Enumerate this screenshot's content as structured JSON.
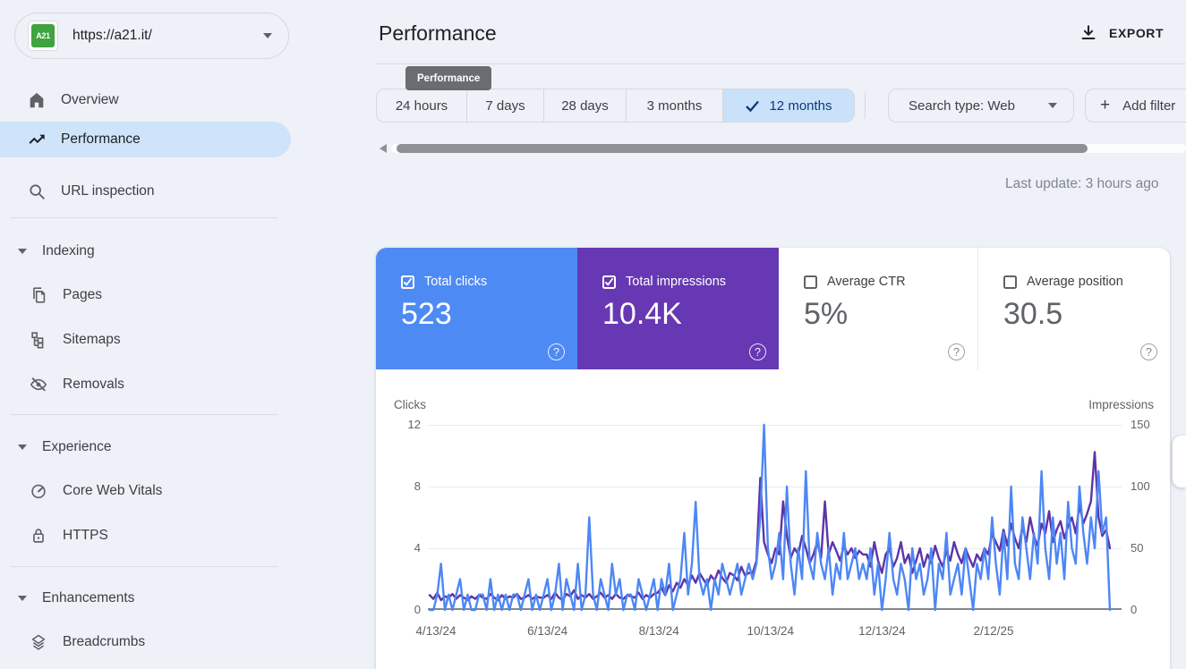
{
  "property": {
    "url": "https://a21.it/",
    "favicon_text": "A21"
  },
  "sidebar": {
    "items": [
      {
        "label": "Overview",
        "icon": "home"
      },
      {
        "label": "Performance",
        "icon": "trending-up",
        "selected": true
      },
      {
        "label": "URL inspection",
        "icon": "search"
      }
    ],
    "sections": [
      {
        "label": "Indexing",
        "items": [
          {
            "label": "Pages",
            "icon": "pages"
          },
          {
            "label": "Sitemaps",
            "icon": "sitemap"
          },
          {
            "label": "Removals",
            "icon": "eye-off"
          }
        ]
      },
      {
        "label": "Experience",
        "items": [
          {
            "label": "Core Web Vitals",
            "icon": "gauge"
          },
          {
            "label": "HTTPS",
            "icon": "lock"
          }
        ]
      },
      {
        "label": "Enhancements",
        "items": [
          {
            "label": "Breadcrumbs",
            "icon": "layers"
          }
        ]
      }
    ]
  },
  "header": {
    "title": "Performance",
    "tooltip": "Performance",
    "export_label": "EXPORT",
    "last_update": "Last update: 3 hours ago"
  },
  "filters": {
    "date_tabs": [
      "24 hours",
      "7 days",
      "28 days",
      "3 months",
      "12 months"
    ],
    "selected_tab": "12 months",
    "search_type_label": "Search type: Web",
    "add_filter_label": "Add filter"
  },
  "metrics": [
    {
      "label": "Total clicks",
      "value": "523",
      "checked": true,
      "color": "#4e8af4"
    },
    {
      "label": "Total impressions",
      "value": "10.4K",
      "checked": true,
      "color": "#6738b3"
    },
    {
      "label": "Average CTR",
      "value": "5%",
      "checked": false
    },
    {
      "label": "Average position",
      "value": "30.5",
      "checked": false
    }
  ],
  "chart_data": {
    "type": "line",
    "x_labels": [
      "4/13/24",
      "6/13/24",
      "8/13/24",
      "10/13/24",
      "12/13/24",
      "2/12/25"
    ],
    "left_axis": {
      "label": "Clicks",
      "ticks": [
        12,
        8,
        4,
        0
      ],
      "max": 12
    },
    "right_axis": {
      "label": "Impressions",
      "ticks": [
        150,
        100,
        50,
        0
      ],
      "max": 150
    },
    "grid": true,
    "series": [
      {
        "name": "Clicks",
        "axis": "left",
        "color": "#4d87f5",
        "values": [
          0,
          0,
          1,
          3,
          0,
          1,
          0,
          1,
          2,
          0,
          1,
          0,
          0,
          1,
          1,
          0,
          2,
          0,
          1,
          0,
          1,
          0,
          1,
          1,
          0,
          1,
          2,
          0,
          1,
          0,
          1,
          2,
          0,
          1,
          3,
          0,
          2,
          1,
          0,
          3,
          0,
          1,
          6,
          1,
          0,
          2,
          1,
          0,
          3,
          1,
          2,
          0,
          1,
          1,
          0,
          2,
          1,
          0,
          1,
          2,
          0,
          2,
          1,
          3,
          0,
          1,
          2,
          5,
          1,
          3,
          7,
          2,
          1,
          2,
          0,
          2,
          1,
          3,
          2,
          1,
          2,
          3,
          1,
          2,
          3,
          2,
          3,
          6,
          12,
          4,
          2,
          3,
          5,
          2,
          8,
          3,
          1,
          4,
          2,
          9,
          3,
          2,
          5,
          3,
          2,
          4,
          1,
          3,
          2,
          5,
          2,
          3,
          4,
          2,
          3,
          2,
          4,
          1,
          3,
          0,
          2,
          5,
          2,
          1,
          3,
          2,
          0,
          4,
          2,
          3,
          1,
          2,
          4,
          0,
          3,
          2,
          5,
          1,
          2,
          3,
          1,
          4,
          2,
          0,
          3,
          2,
          4,
          2,
          6,
          3,
          1,
          5,
          2,
          8,
          3,
          2,
          6,
          4,
          2,
          5,
          3,
          9,
          4,
          2,
          6,
          3,
          5,
          2,
          7,
          4,
          3,
          8,
          5,
          3,
          6,
          4,
          9,
          5,
          6,
          0
        ]
      },
      {
        "name": "Impressions",
        "axis": "right",
        "color": "#5c34a8",
        "values": [
          12,
          9,
          14,
          8,
          11,
          10,
          13,
          9,
          12,
          10,
          8,
          11,
          9,
          12,
          10,
          9,
          13,
          10,
          8,
          12,
          9,
          11,
          10,
          13,
          9,
          10,
          12,
          9,
          11,
          10,
          10,
          12,
          9,
          14,
          10,
          8,
          13,
          11,
          16,
          9,
          12,
          10,
          13,
          9,
          11,
          14,
          10,
          12,
          9,
          13,
          10,
          9,
          12,
          11,
          10,
          14,
          9,
          12,
          10,
          13,
          14,
          18,
          12,
          20,
          15,
          22,
          18,
          25,
          20,
          28,
          22,
          30,
          25,
          20,
          28,
          24,
          32,
          26,
          22,
          30,
          28,
          24,
          35,
          28,
          30,
          30,
          40,
          107,
          55,
          45,
          38,
          50,
          45,
          88,
          60,
          42,
          50,
          45,
          60,
          50,
          38,
          45,
          55,
          42,
          88,
          45,
          55,
          48,
          40,
          52,
          45,
          50,
          42,
          48,
          45,
          45,
          35,
          55,
          40,
          30,
          45,
          50,
          35,
          42,
          55,
          38,
          45,
          30,
          40,
          50,
          35,
          45,
          38,
          52,
          42,
          35,
          48,
          40,
          55,
          45,
          38,
          50,
          42,
          35,
          45,
          40,
          50,
          45,
          62,
          55,
          48,
          65,
          52,
          70,
          58,
          50,
          68,
          55,
          75,
          60,
          52,
          70,
          62,
          80,
          55,
          65,
          72,
          58,
          68,
          75,
          62,
          85,
          70,
          78,
          88,
          128,
          75,
          60,
          65,
          50
        ]
      }
    ]
  }
}
